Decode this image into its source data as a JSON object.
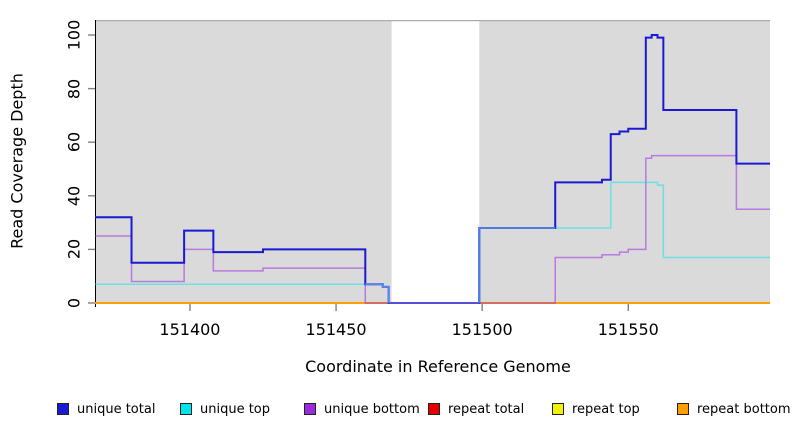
{
  "chart_data": {
    "type": "line",
    "step": true,
    "title": "",
    "xlabel": "Coordinate in Reference Genome",
    "ylabel": "Read Coverage Depth",
    "xlim": [
      151367.5,
      151598.5
    ],
    "ylim": [
      0,
      105
    ],
    "x_ticks": [
      151400,
      151450,
      151500,
      151550
    ],
    "y_ticks": [
      0,
      20,
      40,
      60,
      80,
      100
    ],
    "grid": false,
    "legend_position": "bottom",
    "shaded_regions": [
      [
        151367.5,
        151469
      ],
      [
        151499,
        151598.5
      ]
    ],
    "uncovered_gap": [
      151469,
      151499
    ],
    "series": [
      {
        "name": "unique total",
        "color": "#1A1AD2",
        "points": [
          [
            151367.5,
            32
          ],
          [
            151380,
            15
          ],
          [
            151398,
            27
          ],
          [
            151408,
            19
          ],
          [
            151425,
            20
          ],
          [
            151460,
            7
          ],
          [
            151466,
            6
          ],
          [
            151468,
            0
          ],
          [
            151499,
            28
          ],
          [
            151525,
            45
          ],
          [
            151541,
            46
          ],
          [
            151544,
            63
          ],
          [
            151547,
            64
          ],
          [
            151550,
            65
          ],
          [
            151556,
            99
          ],
          [
            151558,
            100
          ],
          [
            151560,
            99
          ],
          [
            151562,
            72
          ],
          [
            151587,
            52
          ],
          [
            151598.5,
            52
          ]
        ]
      },
      {
        "name": "unique top",
        "color": "#00E5EC",
        "points": [
          [
            151367.5,
            7
          ],
          [
            151466,
            6
          ],
          [
            151468,
            0
          ],
          [
            151499,
            28
          ],
          [
            151544,
            45
          ],
          [
            151560,
            44
          ],
          [
            151562,
            17
          ],
          [
            151598.5,
            17
          ]
        ]
      },
      {
        "name": "unique bottom",
        "color": "#9C2BE0",
        "points": [
          [
            151367.5,
            25
          ],
          [
            151380,
            8
          ],
          [
            151398,
            20
          ],
          [
            151408,
            12
          ],
          [
            151425,
            13
          ],
          [
            151460,
            0
          ],
          [
            151525,
            17
          ],
          [
            151541,
            18
          ],
          [
            151547,
            19
          ],
          [
            151550,
            20
          ],
          [
            151556,
            54
          ],
          [
            151558,
            55
          ],
          [
            151587,
            35
          ],
          [
            151598.5,
            35
          ]
        ]
      },
      {
        "name": "repeat total",
        "color": "#E60000",
        "points": [
          [
            151367.5,
            0
          ],
          [
            151598.5,
            0
          ]
        ]
      },
      {
        "name": "repeat top",
        "color": "#F2F200",
        "points": [
          [
            151367.5,
            0
          ],
          [
            151598.5,
            0
          ]
        ]
      },
      {
        "name": "repeat bottom",
        "color": "#FF9C00",
        "points": [
          [
            151367.5,
            0
          ],
          [
            151598.5,
            0
          ]
        ]
      }
    ]
  },
  "chart_style": {
    "plot_background": "#DADADA",
    "gap_background": "#FFFFFF",
    "top_edge_line": "#ACACAC",
    "axis_color": "#000000",
    "tick_color": "#808080",
    "line_opacity": {
      "unique total": 1,
      "unique top": 0.5,
      "unique bottom": 0.55,
      "repeat total": 1,
      "repeat top": 1,
      "repeat bottom": 1
    },
    "blend_segments": [
      {
        "color": "#5D86EA",
        "width": 2,
        "points": [
          [
            151460,
            7
          ],
          [
            151466,
            6
          ],
          [
            151468,
            0
          ]
        ]
      },
      {
        "color": "#6B5FD6",
        "width": 1.6,
        "points": [
          [
            151468,
            0
          ],
          [
            151499,
            0
          ]
        ]
      },
      {
        "color": "#4C7BE6",
        "width": 2,
        "points": [
          [
            151499,
            0
          ],
          [
            151499,
            28
          ],
          [
            151525,
            28
          ]
        ]
      }
    ]
  }
}
